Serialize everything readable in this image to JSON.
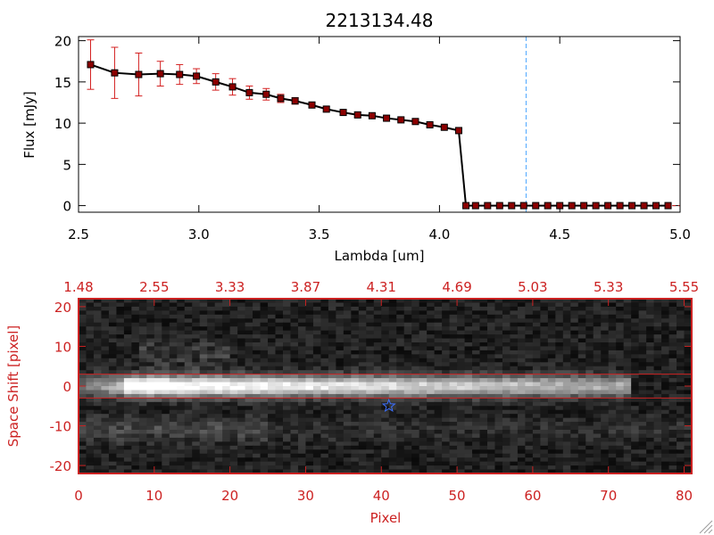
{
  "colors": {
    "spectrum_line": "#000000",
    "spectrum_marker": "#8b0000",
    "error_bar": "#d42020",
    "marker_line": "#4da6ff",
    "image_frame": "#cc2222",
    "image_text": "#cc2222",
    "trace_lines": "#cc2222",
    "star_marker": "#3b6fff"
  },
  "chart_data": [
    {
      "type": "line",
      "title": "2213134.48",
      "xlabel": "Lambda [um]",
      "ylabel": "Flux [mJy]",
      "xlim": [
        2.5,
        5.0
      ],
      "ylim": [
        -0.8,
        20.5
      ],
      "xticks": [
        2.5,
        3.0,
        3.5,
        4.0,
        4.5,
        5.0
      ],
      "xtick_labels": [
        "2.5",
        "3.0",
        "3.5",
        "4.0",
        "4.5",
        "5.0"
      ],
      "yticks": [
        0,
        5,
        10,
        15,
        20
      ],
      "ytick_labels": [
        "0",
        "5",
        "10",
        "15",
        "20"
      ],
      "marker_line_x": 4.36,
      "series": [
        {
          "x": [
            2.55,
            2.65,
            2.75,
            2.84,
            2.92,
            2.99,
            3.07,
            3.14,
            3.21,
            3.28,
            3.34,
            3.4,
            3.47,
            3.53,
            3.6,
            3.66,
            3.72,
            3.78,
            3.84,
            3.9,
            3.96,
            4.02,
            4.08,
            4.11,
            4.15,
            4.2,
            4.25,
            4.3,
            4.35,
            4.4,
            4.45,
            4.5,
            4.55,
            4.6,
            4.65,
            4.7,
            4.75,
            4.8,
            4.85,
            4.9,
            4.95
          ],
          "y": [
            17.1,
            16.1,
            15.9,
            16.0,
            15.9,
            15.7,
            15.0,
            14.4,
            13.7,
            13.5,
            13.0,
            12.7,
            12.2,
            11.7,
            11.3,
            11.0,
            10.9,
            10.6,
            10.4,
            10.2,
            9.8,
            9.5,
            9.1,
            0.0,
            0.0,
            0.0,
            0.0,
            0.0,
            0.0,
            0.0,
            0.0,
            0.0,
            0.0,
            0.0,
            0.0,
            0.0,
            0.0,
            0.0,
            0.0,
            0.0,
            0.0
          ],
          "yerr": [
            3.0,
            3.1,
            2.6,
            1.5,
            1.2,
            0.9,
            1.0,
            1.0,
            0.8,
            0.7,
            0.5,
            0.4,
            0.3,
            0.3,
            0.3,
            0.3,
            0.2,
            0.2,
            0.2,
            0.2,
            0.2,
            0.2,
            0.2,
            0,
            0,
            0,
            0,
            0,
            0,
            0,
            0,
            0,
            0,
            0,
            0,
            0,
            0,
            0,
            0,
            0,
            0
          ]
        }
      ]
    },
    {
      "type": "heatmap",
      "xlabel": "Pixel",
      "ylabel": "Space Shift [pixel]",
      "xlim": [
        0,
        81
      ],
      "ylim": [
        -22,
        22
      ],
      "xticks": [
        0,
        10,
        20,
        30,
        40,
        50,
        60,
        70,
        80
      ],
      "xtick_labels": [
        "0",
        "10",
        "20",
        "30",
        "40",
        "50",
        "60",
        "70",
        "80"
      ],
      "yticks": [
        20,
        10,
        0,
        -10,
        -20
      ],
      "ytick_labels": [
        "20",
        "10",
        "0",
        "-10",
        "-20"
      ],
      "top_axis_ticks": [
        0,
        10,
        20,
        30,
        40,
        50,
        60,
        70,
        80
      ],
      "top_axis_labels": [
        "1.48",
        "2.55",
        "3.33",
        "3.87",
        "4.31",
        "4.69",
        "5.03",
        "5.33",
        "5.55"
      ],
      "trace_lines_y": [
        3,
        -3
      ],
      "star_position": [
        41,
        -5
      ],
      "colormap": "grayscale"
    }
  ]
}
